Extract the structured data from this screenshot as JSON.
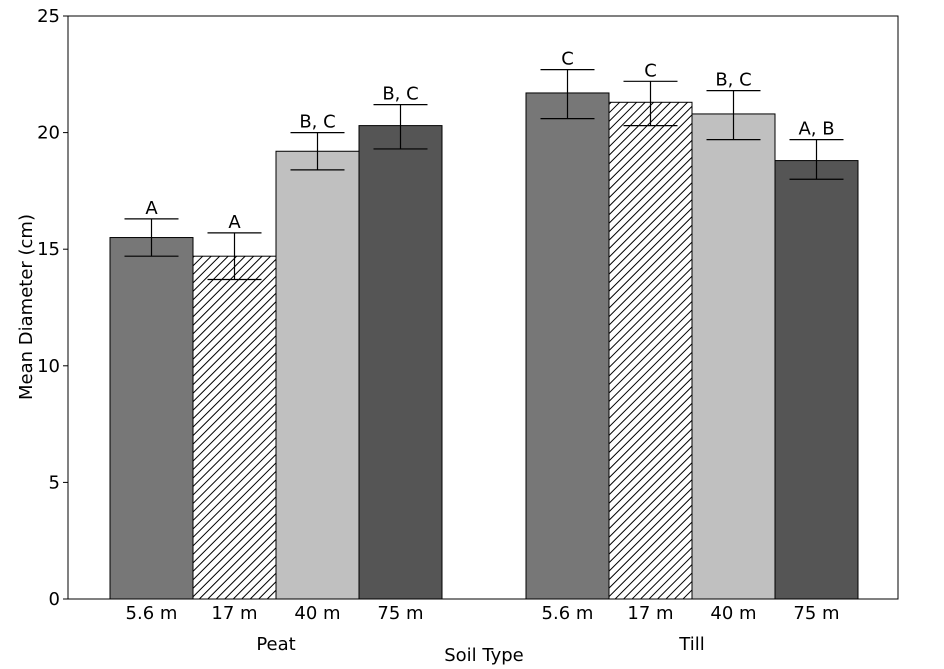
{
  "chart_data": {
    "type": "bar",
    "title": "",
    "xlabel": "Soil Type",
    "ylabel": "Mean Diameter (cm)",
    "ylim": [
      0,
      25
    ],
    "yticks": [
      0,
      5,
      10,
      15,
      20,
      25
    ],
    "grid": false,
    "legend": "none",
    "groups": [
      {
        "name": "Peat",
        "bars": [
          {
            "category": "5.6 m",
            "value": 15.5,
            "err_low": 14.7,
            "err_high": 16.3,
            "label": "A",
            "fill": "#777777",
            "pattern": "solid"
          },
          {
            "category": "17 m",
            "value": 14.7,
            "err_low": 13.7,
            "err_high": 15.7,
            "label": "A",
            "fill": "#ffffff",
            "pattern": "hatch"
          },
          {
            "category": "40 m",
            "value": 19.2,
            "err_low": 18.4,
            "err_high": 20.0,
            "label": "B, C",
            "fill": "#c0c0c0",
            "pattern": "solid"
          },
          {
            "category": "75 m",
            "value": 20.3,
            "err_low": 19.3,
            "err_high": 21.2,
            "label": "B, C",
            "fill": "#555555",
            "pattern": "solid"
          }
        ]
      },
      {
        "name": "Till",
        "bars": [
          {
            "category": "5.6 m",
            "value": 21.7,
            "err_low": 20.6,
            "err_high": 22.7,
            "label": "C",
            "fill": "#777777",
            "pattern": "solid"
          },
          {
            "category": "17 m",
            "value": 21.3,
            "err_low": 20.3,
            "err_high": 22.2,
            "label": "C",
            "fill": "#ffffff",
            "pattern": "hatch"
          },
          {
            "category": "40 m",
            "value": 20.8,
            "err_low": 19.7,
            "err_high": 21.8,
            "label": "B, C",
            "fill": "#c0c0c0",
            "pattern": "solid"
          },
          {
            "category": "75 m",
            "value": 18.8,
            "err_low": 18.0,
            "err_high": 19.7,
            "label": "A, B",
            "fill": "#555555",
            "pattern": "solid"
          }
        ]
      }
    ]
  }
}
